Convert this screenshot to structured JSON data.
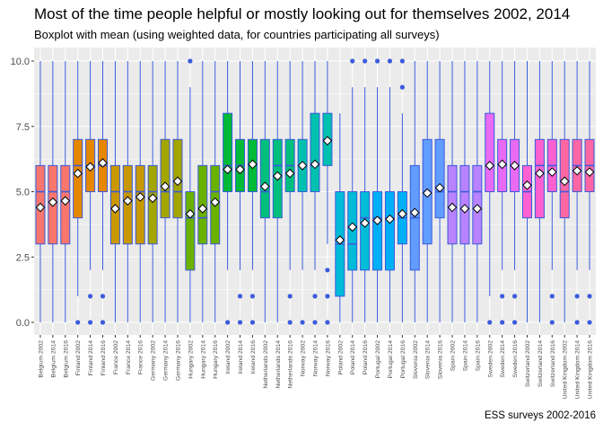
{
  "chart_data": {
    "type": "boxplot",
    "title": "Most of the time people helpful or mostly looking out for themselves 2002, 2014",
    "subtitle": "Boxplot with mean (using weighted data, for countries participating all surveys)",
    "caption": "ESS surveys 2002-2016",
    "xlabel": "",
    "ylabel": "",
    "ylim": [
      0,
      10
    ],
    "yticks": [
      "0.0",
      "2.5",
      "5.0",
      "7.5",
      "10.0"
    ],
    "grid": true,
    "legend": "none",
    "colors": {
      "Belgium": "#f8766d",
      "Finland": "#e58700",
      "France": "#c99800",
      "Germany": "#a3a500",
      "Hungary": "#6bb100",
      "Ireland": "#00ba38",
      "Netherlands": "#00bf7d",
      "Norway": "#00c0af",
      "Poland": "#00bcd8",
      "Portugal": "#00b0f6",
      "Slovenia": "#619cff",
      "Spain": "#b983ff",
      "Sweden": "#e76bf3",
      "Switzerland": "#fd61d1",
      "United Kingdom": "#ff67a4",
      "outline": "#3b5bdb",
      "panel": "#ebebeb"
    },
    "boxes": [
      {
        "label": "Belgium 2002",
        "group": "Belgium",
        "whisker_low": 0,
        "q1": 3,
        "median": 5,
        "q3": 6,
        "whisker_high": 10,
        "mean": 4.4,
        "outliers": []
      },
      {
        "label": "Belgium 2014",
        "group": "Belgium",
        "whisker_low": 0,
        "q1": 3,
        "median": 5,
        "q3": 6,
        "whisker_high": 10,
        "mean": 4.6,
        "outliers": []
      },
      {
        "label": "Belgium 2016",
        "group": "Belgium",
        "whisker_low": 0,
        "q1": 3,
        "median": 5,
        "q3": 6,
        "whisker_high": 10,
        "mean": 4.65,
        "outliers": []
      },
      {
        "label": "Finland 2002",
        "group": "Finland",
        "whisker_low": 1,
        "q1": 4,
        "median": 6,
        "q3": 7,
        "whisker_high": 10,
        "mean": 5.7,
        "outliers": [
          0
        ]
      },
      {
        "label": "Finland 2014",
        "group": "Finland",
        "whisker_low": 2,
        "q1": 5,
        "median": 6,
        "q3": 7,
        "whisker_high": 10,
        "mean": 5.95,
        "outliers": [
          1,
          0
        ]
      },
      {
        "label": "Finland 2016",
        "group": "Finland",
        "whisker_low": 2,
        "q1": 5,
        "median": 6,
        "q3": 7,
        "whisker_high": 10,
        "mean": 6.1,
        "outliers": [
          1,
          0
        ]
      },
      {
        "label": "France 2002",
        "group": "France",
        "whisker_low": 0,
        "q1": 3,
        "median": 5,
        "q3": 6,
        "whisker_high": 10,
        "mean": 4.35,
        "outliers": []
      },
      {
        "label": "France 2014",
        "group": "France",
        "whisker_low": 0,
        "q1": 3,
        "median": 5,
        "q3": 6,
        "whisker_high": 10,
        "mean": 4.65,
        "outliers": []
      },
      {
        "label": "France 2016",
        "group": "France",
        "whisker_low": 0,
        "q1": 3,
        "median": 5,
        "q3": 6,
        "whisker_high": 10,
        "mean": 4.8,
        "outliers": []
      },
      {
        "label": "Germany 2002",
        "group": "Germany",
        "whisker_low": 0,
        "q1": 3,
        "median": 5,
        "q3": 6,
        "whisker_high": 10,
        "mean": 4.75,
        "outliers": []
      },
      {
        "label": "Germany 2014",
        "group": "Germany",
        "whisker_low": 0,
        "q1": 4,
        "median": 5,
        "q3": 7,
        "whisker_high": 10,
        "mean": 5.2,
        "outliers": []
      },
      {
        "label": "Germany 2016",
        "group": "Germany",
        "whisker_low": 0,
        "q1": 4,
        "median": 5,
        "q3": 7,
        "whisker_high": 10,
        "mean": 5.4,
        "outliers": []
      },
      {
        "label": "Hungary 2002",
        "group": "Hungary",
        "whisker_low": 0,
        "q1": 2,
        "median": 4,
        "q3": 5,
        "whisker_high": 9,
        "mean": 4.15,
        "outliers": [
          10
        ]
      },
      {
        "label": "Hungary 2014",
        "group": "Hungary",
        "whisker_low": 0,
        "q1": 3,
        "median": 4,
        "q3": 6,
        "whisker_high": 10,
        "mean": 4.35,
        "outliers": []
      },
      {
        "label": "Hungary 2016",
        "group": "Hungary",
        "whisker_low": 0,
        "q1": 3,
        "median": 5,
        "q3": 6,
        "whisker_high": 10,
        "mean": 4.6,
        "outliers": []
      },
      {
        "label": "Ireland 2002",
        "group": "Ireland",
        "whisker_low": 2,
        "q1": 5,
        "median": 6,
        "q3": 8,
        "whisker_high": 10,
        "mean": 5.85,
        "outliers": [
          0
        ]
      },
      {
        "label": "Ireland 2014",
        "group": "Ireland",
        "whisker_low": 2,
        "q1": 5,
        "median": 6,
        "q3": 7,
        "whisker_high": 10,
        "mean": 5.85,
        "outliers": [
          1,
          0
        ]
      },
      {
        "label": "Ireland 2016",
        "group": "Ireland",
        "whisker_low": 2,
        "q1": 5,
        "median": 6,
        "q3": 7,
        "whisker_high": 10,
        "mean": 6.05,
        "outliers": [
          1,
          0
        ]
      },
      {
        "label": "Netherlands 2002",
        "group": "Netherlands",
        "whisker_low": 0,
        "q1": 4,
        "median": 5,
        "q3": 7,
        "whisker_high": 10,
        "mean": 5.2,
        "outliers": []
      },
      {
        "label": "Netherlands 2014",
        "group": "Netherlands",
        "whisker_low": 0,
        "q1": 4,
        "median": 6,
        "q3": 7,
        "whisker_high": 10,
        "mean": 5.6,
        "outliers": []
      },
      {
        "label": "Netherlands 2016",
        "group": "Netherlands",
        "whisker_low": 2,
        "q1": 5,
        "median": 6,
        "q3": 7,
        "whisker_high": 10,
        "mean": 5.7,
        "outliers": [
          1,
          0
        ]
      },
      {
        "label": "Norway 2002",
        "group": "Norway",
        "whisker_low": 2,
        "q1": 5,
        "median": 6,
        "q3": 7,
        "whisker_high": 10,
        "mean": 6.0,
        "outliers": [
          0
        ]
      },
      {
        "label": "Norway 2014",
        "group": "Norway",
        "whisker_low": 2,
        "q1": 5,
        "median": 6,
        "q3": 8,
        "whisker_high": 10,
        "mean": 6.05,
        "outliers": [
          1,
          0
        ]
      },
      {
        "label": "Norway 2016",
        "group": "Norway",
        "whisker_low": 3,
        "q1": 6,
        "median": 7,
        "q3": 8,
        "whisker_high": 10,
        "mean": 6.95,
        "outliers": [
          2,
          1,
          0
        ]
      },
      {
        "label": "Poland 2002",
        "group": "Poland",
        "whisker_low": 0,
        "q1": 1,
        "median": 3,
        "q3": 5,
        "whisker_high": 8,
        "mean": 3.15,
        "outliers": []
      },
      {
        "label": "Poland 2014",
        "group": "Poland",
        "whisker_low": 0,
        "q1": 2,
        "median": 3,
        "q3": 5,
        "whisker_high": 9,
        "mean": 3.65,
        "outliers": [
          10
        ]
      },
      {
        "label": "Poland 2016",
        "group": "Poland",
        "whisker_low": 0,
        "q1": 2,
        "median": 4,
        "q3": 5,
        "whisker_high": 9,
        "mean": 3.8,
        "outliers": [
          10
        ]
      },
      {
        "label": "Portugal 2002",
        "group": "Portugal",
        "whisker_low": 0,
        "q1": 2,
        "median": 4,
        "q3": 5,
        "whisker_high": 9,
        "mean": 3.9,
        "outliers": [
          10
        ]
      },
      {
        "label": "Portugal 2014",
        "group": "Portugal",
        "whisker_low": 0,
        "q1": 2,
        "median": 4,
        "q3": 5,
        "whisker_high": 9,
        "mean": 3.95,
        "outliers": [
          10
        ]
      },
      {
        "label": "Portugal 2016",
        "group": "Portugal",
        "whisker_low": 0,
        "q1": 3,
        "median": 4,
        "q3": 5,
        "whisker_high": 8,
        "mean": 4.15,
        "outliers": [
          10,
          9
        ]
      },
      {
        "label": "Slovenia 2002",
        "group": "Slovenia",
        "whisker_low": 0,
        "q1": 2,
        "median": 4,
        "q3": 6,
        "whisker_high": 10,
        "mean": 4.2,
        "outliers": []
      },
      {
        "label": "Slovenia 2014",
        "group": "Slovenia",
        "whisker_low": 0,
        "q1": 3,
        "median": 5,
        "q3": 7,
        "whisker_high": 10,
        "mean": 4.95,
        "outliers": []
      },
      {
        "label": "Slovenia 2016",
        "group": "Slovenia",
        "whisker_low": 0,
        "q1": 4,
        "median": 5,
        "q3": 7,
        "whisker_high": 10,
        "mean": 5.15,
        "outliers": []
      },
      {
        "label": "Spain 2002",
        "group": "Spain",
        "whisker_low": 0,
        "q1": 3,
        "median": 5,
        "q3": 6,
        "whisker_high": 10,
        "mean": 4.4,
        "outliers": []
      },
      {
        "label": "Spain 2014",
        "group": "Spain",
        "whisker_low": 0,
        "q1": 3,
        "median": 5,
        "q3": 6,
        "whisker_high": 10,
        "mean": 4.35,
        "outliers": []
      },
      {
        "label": "Spain 2016",
        "group": "Spain",
        "whisker_low": 0,
        "q1": 3,
        "median": 5,
        "q3": 6,
        "whisker_high": 10,
        "mean": 4.35,
        "outliers": []
      },
      {
        "label": "Sweden 2002",
        "group": "Sweden",
        "whisker_low": 1,
        "q1": 5,
        "median": 6,
        "q3": 8,
        "whisker_high": 10,
        "mean": 6.0,
        "outliers": [
          0
        ]
      },
      {
        "label": "Sweden 2014",
        "group": "Sweden",
        "whisker_low": 2,
        "q1": 5,
        "median": 6,
        "q3": 7,
        "whisker_high": 10,
        "mean": 6.05,
        "outliers": [
          1,
          0
        ]
      },
      {
        "label": "Sweden 2016",
        "group": "Sweden",
        "whisker_low": 2,
        "q1": 5,
        "median": 6,
        "q3": 7,
        "whisker_high": 10,
        "mean": 6.0,
        "outliers": [
          1,
          0
        ]
      },
      {
        "label": "Switzerland 2002",
        "group": "Switzerland",
        "whisker_low": 0,
        "q1": 4,
        "median": 5,
        "q3": 6,
        "whisker_high": 10,
        "mean": 5.25,
        "outliers": []
      },
      {
        "label": "Switzerland 2014",
        "group": "Switzerland",
        "whisker_low": 0,
        "q1": 4,
        "median": 6,
        "q3": 7,
        "whisker_high": 10,
        "mean": 5.7,
        "outliers": []
      },
      {
        "label": "Switzerland 2016",
        "group": "Switzerland",
        "whisker_low": 2,
        "q1": 5,
        "median": 6,
        "q3": 7,
        "whisker_high": 10,
        "mean": 5.75,
        "outliers": [
          1,
          0
        ]
      },
      {
        "label": "United Kingdom 2002",
        "group": "United Kingdom",
        "whisker_low": 0,
        "q1": 4,
        "median": 5,
        "q3": 7,
        "whisker_high": 10,
        "mean": 5.4,
        "outliers": []
      },
      {
        "label": "United Kingdom 2014",
        "group": "United Kingdom",
        "whisker_low": 2,
        "q1": 5,
        "median": 6,
        "q3": 7,
        "whisker_high": 10,
        "mean": 5.8,
        "outliers": [
          1,
          0
        ]
      },
      {
        "label": "United Kingdom 2016",
        "group": "United Kingdom",
        "whisker_low": 2,
        "q1": 5,
        "median": 6,
        "q3": 7,
        "whisker_high": 10,
        "mean": 5.75,
        "outliers": [
          1,
          0
        ]
      }
    ]
  }
}
